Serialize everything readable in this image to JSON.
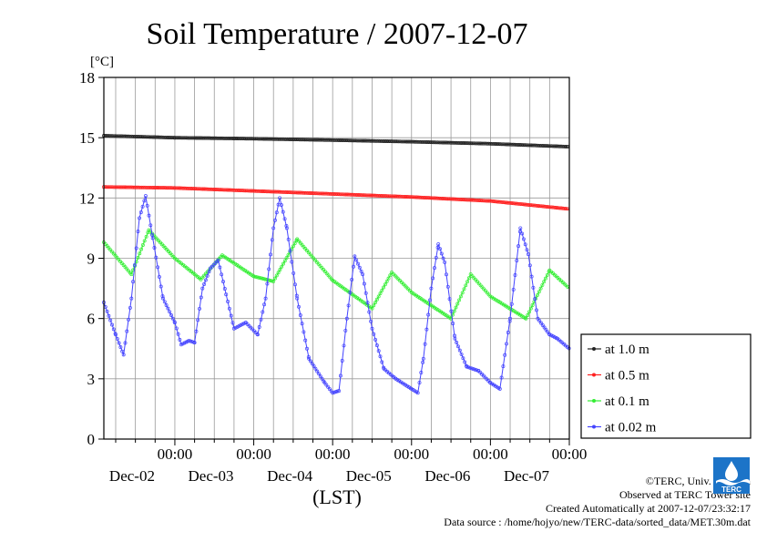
{
  "chart_data": {
    "type": "line",
    "title": "Soil Temperature / 2007-12-07",
    "ylabel": "[°C]",
    "xlabel": "(LST)",
    "ylim": [
      0,
      18
    ],
    "yticks": [
      0,
      3,
      6,
      9,
      12,
      15,
      18
    ],
    "xlim": [
      -0.9,
      5.0
    ],
    "xticks": [
      {
        "x": 0,
        "time": "00:00",
        "date": "Dec-02"
      },
      {
        "x": 1,
        "time": "00:00",
        "date": "Dec-03"
      },
      {
        "x": 2,
        "time": "00:00",
        "date": "Dec-04"
      },
      {
        "x": 3,
        "time": "00:00",
        "date": "Dec-05"
      },
      {
        "x": 4,
        "time": "00:00",
        "date": "Dec-06"
      },
      {
        "x": 5,
        "time": "00:00",
        "date": "Dec-07"
      }
    ],
    "grid": true,
    "legend_position": "right",
    "series": [
      {
        "name": "at 1.0 m",
        "color": "#222222",
        "points": [
          [
            -0.9,
            15.1
          ],
          [
            0,
            15.0
          ],
          [
            1,
            14.95
          ],
          [
            2,
            14.88
          ],
          [
            3,
            14.8
          ],
          [
            4,
            14.7
          ],
          [
            5,
            14.55
          ]
        ]
      },
      {
        "name": "at 0.5 m",
        "color": "#ff2020",
        "points": [
          [
            -0.9,
            12.55
          ],
          [
            0,
            12.5
          ],
          [
            1,
            12.35
          ],
          [
            2,
            12.2
          ],
          [
            3,
            12.05
          ],
          [
            4,
            11.85
          ],
          [
            5,
            11.45
          ]
        ]
      },
      {
        "name": "at 0.1 m",
        "color": "#33ee33",
        "points": [
          [
            -0.9,
            9.8
          ],
          [
            -0.55,
            8.2
          ],
          [
            -0.33,
            10.4
          ],
          [
            0,
            9.0
          ],
          [
            0.33,
            7.95
          ],
          [
            0.6,
            9.15
          ],
          [
            1,
            8.1
          ],
          [
            1.25,
            7.85
          ],
          [
            1.55,
            9.95
          ],
          [
            2,
            7.9
          ],
          [
            2.5,
            6.5
          ],
          [
            2.75,
            8.3
          ],
          [
            3,
            7.3
          ],
          [
            3.5,
            6.0
          ],
          [
            3.75,
            8.2
          ],
          [
            4,
            7.1
          ],
          [
            4.45,
            6.0
          ],
          [
            4.75,
            8.4
          ],
          [
            5.0,
            7.5
          ]
        ]
      },
      {
        "name": "at 0.02 m",
        "color": "#4444ff",
        "points": [
          [
            -0.9,
            6.8
          ],
          [
            -0.75,
            5.2
          ],
          [
            -0.65,
            4.2
          ],
          [
            -0.55,
            7.0
          ],
          [
            -0.45,
            11.0
          ],
          [
            -0.37,
            12.1
          ],
          [
            -0.28,
            10.0
          ],
          [
            -0.15,
            7.0
          ],
          [
            0,
            5.8
          ],
          [
            0.08,
            4.7
          ],
          [
            0.18,
            4.9
          ],
          [
            0.25,
            4.8
          ],
          [
            0.35,
            7.5
          ],
          [
            0.45,
            8.5
          ],
          [
            0.55,
            8.9
          ],
          [
            0.65,
            7.2
          ],
          [
            0.75,
            5.5
          ],
          [
            0.9,
            5.8
          ],
          [
            1.05,
            5.2
          ],
          [
            1.15,
            7.0
          ],
          [
            1.25,
            10.5
          ],
          [
            1.33,
            12.0
          ],
          [
            1.42,
            10.5
          ],
          [
            1.55,
            7.0
          ],
          [
            1.7,
            4.0
          ],
          [
            1.9,
            2.8
          ],
          [
            2.0,
            2.3
          ],
          [
            2.08,
            2.4
          ],
          [
            2.18,
            6.0
          ],
          [
            2.28,
            9.1
          ],
          [
            2.38,
            8.2
          ],
          [
            2.5,
            5.5
          ],
          [
            2.65,
            3.5
          ],
          [
            2.8,
            3.0
          ],
          [
            3.0,
            2.5
          ],
          [
            3.08,
            2.3
          ],
          [
            3.15,
            4.0
          ],
          [
            3.25,
            7.5
          ],
          [
            3.34,
            9.7
          ],
          [
            3.42,
            8.8
          ],
          [
            3.55,
            5.0
          ],
          [
            3.7,
            3.6
          ],
          [
            3.85,
            3.4
          ],
          [
            4.0,
            2.8
          ],
          [
            4.12,
            2.5
          ],
          [
            4.25,
            6.0
          ],
          [
            4.38,
            10.5
          ],
          [
            4.48,
            9.2
          ],
          [
            4.6,
            6.0
          ],
          [
            4.75,
            5.2
          ],
          [
            4.85,
            5.0
          ],
          [
            5.0,
            4.5
          ]
        ]
      }
    ],
    "footer": {
      "copyright": "©TERC, Univ. Tsukuba",
      "observed": "Observed at TERC Tower site",
      "created": "Created Automatically at 2007-12-07/23:32:17",
      "source": "Data source : /home/hojyo/new/TERC-data/sorted_data/MET.30m.dat"
    },
    "logo_text": "TERC"
  }
}
